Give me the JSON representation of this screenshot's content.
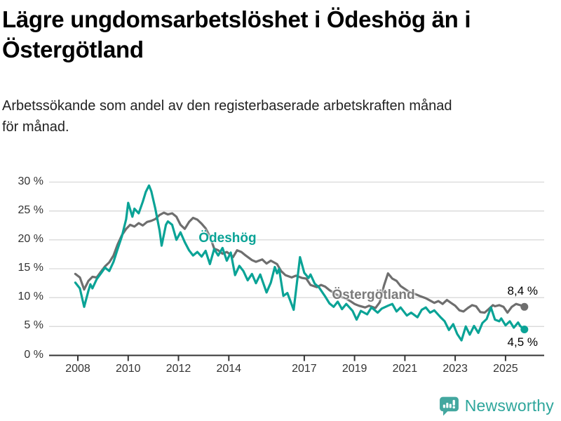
{
  "header": {
    "title_line1": "Lägre ungdomsarbetslöshet i Ödeshög än i",
    "title_line2": "Östergötland",
    "subtitle_line1": "Arbetssökande som andel av den registerbaserade arbetskraften månad",
    "subtitle_line2": "för månad."
  },
  "chart_data": {
    "type": "line",
    "unit": "%",
    "grid": true,
    "style": {
      "grid_color": "#d9d9d9",
      "axis_color": "#333333",
      "tick_label_color": "#333333"
    },
    "x_axis": {
      "range": [
        2007.9,
        2026.5
      ],
      "ticks": [
        2008,
        2010,
        2012,
        2014,
        2017,
        2019,
        2021,
        2023,
        2025
      ]
    },
    "y_axis": {
      "range": [
        0,
        30
      ],
      "ticks": [
        {
          "value": 30,
          "label": "30 %"
        },
        {
          "value": 25,
          "label": "25 %"
        },
        {
          "value": 20,
          "label": "20 %"
        },
        {
          "value": 15,
          "label": "15 %"
        },
        {
          "value": 10,
          "label": "10 %"
        },
        {
          "value": 5,
          "label": "5 %"
        },
        {
          "value": 0,
          "label": "0 %"
        }
      ]
    },
    "series": [
      {
        "name": "Ödeshög",
        "color": "#0aa396",
        "label_color": "#0aa396",
        "end_value": 4.5,
        "end_label": "4,5 %",
        "label_anchor": {
          "year": 2013.95,
          "pct": 20.2
        },
        "end_label_anchor": {
          "year": 2025.68,
          "pct": 2.2
        },
        "points": [
          [
            2007.9,
            12.6
          ],
          [
            2008.08,
            11.6
          ],
          [
            2008.25,
            8.4
          ],
          [
            2008.42,
            11.2
          ],
          [
            2008.5,
            12.3
          ],
          [
            2008.58,
            11.6
          ],
          [
            2008.75,
            13.2
          ],
          [
            2008.92,
            14.2
          ],
          [
            2009.08,
            15.2
          ],
          [
            2009.25,
            14.6
          ],
          [
            2009.42,
            16.2
          ],
          [
            2009.58,
            18.4
          ],
          [
            2009.75,
            20.6
          ],
          [
            2009.92,
            23.6
          ],
          [
            2010.0,
            26.4
          ],
          [
            2010.17,
            24.0
          ],
          [
            2010.25,
            25.4
          ],
          [
            2010.42,
            24.6
          ],
          [
            2010.58,
            26.6
          ],
          [
            2010.7,
            28.3
          ],
          [
            2010.83,
            29.4
          ],
          [
            2010.92,
            28.4
          ],
          [
            2011.08,
            25.4
          ],
          [
            2011.25,
            21.6
          ],
          [
            2011.33,
            19.0
          ],
          [
            2011.5,
            22.6
          ],
          [
            2011.58,
            23.2
          ],
          [
            2011.75,
            22.6
          ],
          [
            2011.92,
            20.0
          ],
          [
            2012.08,
            21.3
          ],
          [
            2012.25,
            19.6
          ],
          [
            2012.42,
            18.2
          ],
          [
            2012.58,
            17.3
          ],
          [
            2012.75,
            17.9
          ],
          [
            2012.92,
            17.1
          ],
          [
            2013.08,
            18.1
          ],
          [
            2013.25,
            15.8
          ],
          [
            2013.42,
            18.4
          ],
          [
            2013.58,
            17.3
          ],
          [
            2013.75,
            18.6
          ],
          [
            2013.92,
            16.4
          ],
          [
            2014.08,
            17.8
          ],
          [
            2014.25,
            13.9
          ],
          [
            2014.42,
            15.5
          ],
          [
            2014.58,
            14.6
          ],
          [
            2014.75,
            13.0
          ],
          [
            2014.92,
            14.1
          ],
          [
            2015.08,
            12.5
          ],
          [
            2015.25,
            14.0
          ],
          [
            2015.5,
            10.9
          ],
          [
            2015.67,
            12.6
          ],
          [
            2015.83,
            15.3
          ],
          [
            2015.92,
            14.2
          ],
          [
            2016.0,
            15.0
          ],
          [
            2016.17,
            10.3
          ],
          [
            2016.33,
            10.8
          ],
          [
            2016.58,
            7.9
          ],
          [
            2016.83,
            17.0
          ],
          [
            2017.0,
            14.3
          ],
          [
            2017.17,
            13.4
          ],
          [
            2017.25,
            14.0
          ],
          [
            2017.42,
            12.4
          ],
          [
            2017.58,
            11.8
          ],
          [
            2017.83,
            10.2
          ],
          [
            2018.0,
            9.0
          ],
          [
            2018.17,
            8.4
          ],
          [
            2018.33,
            9.3
          ],
          [
            2018.5,
            8.0
          ],
          [
            2018.67,
            8.9
          ],
          [
            2018.92,
            7.7
          ],
          [
            2019.08,
            6.2
          ],
          [
            2019.25,
            7.7
          ],
          [
            2019.5,
            7.1
          ],
          [
            2019.67,
            8.3
          ],
          [
            2019.92,
            7.4
          ],
          [
            2020.08,
            8.1
          ],
          [
            2020.33,
            8.6
          ],
          [
            2020.5,
            8.9
          ],
          [
            2020.67,
            7.6
          ],
          [
            2020.83,
            8.3
          ],
          [
            2021.08,
            6.9
          ],
          [
            2021.25,
            7.4
          ],
          [
            2021.5,
            6.6
          ],
          [
            2021.67,
            7.9
          ],
          [
            2021.83,
            8.3
          ],
          [
            2022.0,
            7.4
          ],
          [
            2022.17,
            7.8
          ],
          [
            2022.42,
            6.6
          ],
          [
            2022.58,
            5.9
          ],
          [
            2022.75,
            4.4
          ],
          [
            2022.92,
            5.4
          ],
          [
            2023.08,
            3.7
          ],
          [
            2023.25,
            2.6
          ],
          [
            2023.42,
            5.0
          ],
          [
            2023.58,
            3.6
          ],
          [
            2023.75,
            5.1
          ],
          [
            2023.92,
            3.9
          ],
          [
            2024.08,
            5.6
          ],
          [
            2024.25,
            6.3
          ],
          [
            2024.42,
            8.3
          ],
          [
            2024.58,
            6.2
          ],
          [
            2024.75,
            5.9
          ],
          [
            2024.83,
            6.4
          ],
          [
            2025.0,
            5.2
          ],
          [
            2025.17,
            5.9
          ],
          [
            2025.33,
            4.8
          ],
          [
            2025.5,
            5.7
          ],
          [
            2025.58,
            5.1
          ],
          [
            2025.75,
            4.5
          ]
        ]
      },
      {
        "name": "Östergötland",
        "color": "#6e6e6e",
        "label_color": "#7a7a7a",
        "end_value": 8.4,
        "end_label": "8,4 %",
        "label_anchor": {
          "year": 2019.75,
          "pct": 10.35
        },
        "end_label_anchor": {
          "year": 2025.68,
          "pct": 11.1
        },
        "points": [
          [
            2007.9,
            14.1
          ],
          [
            2008.08,
            13.5
          ],
          [
            2008.25,
            11.4
          ],
          [
            2008.42,
            12.9
          ],
          [
            2008.58,
            13.6
          ],
          [
            2008.75,
            13.5
          ],
          [
            2008.92,
            14.5
          ],
          [
            2009.08,
            15.4
          ],
          [
            2009.25,
            16.1
          ],
          [
            2009.42,
            17.3
          ],
          [
            2009.58,
            19.2
          ],
          [
            2009.75,
            20.8
          ],
          [
            2009.92,
            21.9
          ],
          [
            2010.08,
            22.6
          ],
          [
            2010.25,
            22.3
          ],
          [
            2010.42,
            22.9
          ],
          [
            2010.58,
            22.5
          ],
          [
            2010.75,
            23.1
          ],
          [
            2010.92,
            23.3
          ],
          [
            2011.08,
            23.6
          ],
          [
            2011.25,
            24.3
          ],
          [
            2011.42,
            24.7
          ],
          [
            2011.58,
            24.4
          ],
          [
            2011.75,
            24.6
          ],
          [
            2011.92,
            24.0
          ],
          [
            2012.08,
            22.6
          ],
          [
            2012.25,
            21.9
          ],
          [
            2012.42,
            23.1
          ],
          [
            2012.58,
            23.8
          ],
          [
            2012.75,
            23.5
          ],
          [
            2012.92,
            22.8
          ],
          [
            2013.08,
            22.0
          ],
          [
            2013.25,
            20.6
          ],
          [
            2013.42,
            18.5
          ],
          [
            2013.58,
            18.2
          ],
          [
            2013.75,
            17.6
          ],
          [
            2013.92,
            17.9
          ],
          [
            2014.08,
            17.4
          ],
          [
            2014.17,
            17.0
          ],
          [
            2014.33,
            18.2
          ],
          [
            2014.5,
            17.9
          ],
          [
            2014.67,
            17.3
          ],
          [
            2014.92,
            16.5
          ],
          [
            2015.08,
            16.2
          ],
          [
            2015.33,
            16.6
          ],
          [
            2015.5,
            15.9
          ],
          [
            2015.67,
            16.4
          ],
          [
            2015.92,
            15.8
          ],
          [
            2016.08,
            14.6
          ],
          [
            2016.25,
            13.9
          ],
          [
            2016.5,
            13.5
          ],
          [
            2016.67,
            13.8
          ],
          [
            2016.92,
            13.4
          ],
          [
            2017.08,
            13.3
          ],
          [
            2017.25,
            12.2
          ],
          [
            2017.5,
            11.8
          ],
          [
            2017.67,
            12.2
          ],
          [
            2017.83,
            11.9
          ],
          [
            2018.0,
            11.3
          ],
          [
            2018.25,
            10.6
          ],
          [
            2018.42,
            10.2
          ],
          [
            2018.67,
            9.8
          ],
          [
            2018.83,
            9.4
          ],
          [
            2019.0,
            8.9
          ],
          [
            2019.17,
            8.6
          ],
          [
            2019.42,
            8.3
          ],
          [
            2019.58,
            8.6
          ],
          [
            2019.83,
            8.2
          ],
          [
            2020.0,
            9.2
          ],
          [
            2020.17,
            12.1
          ],
          [
            2020.33,
            14.2
          ],
          [
            2020.5,
            13.3
          ],
          [
            2020.67,
            12.9
          ],
          [
            2020.83,
            12.0
          ],
          [
            2021.0,
            11.5
          ],
          [
            2021.17,
            11.0
          ],
          [
            2021.42,
            10.6
          ],
          [
            2021.58,
            10.3
          ],
          [
            2021.83,
            9.9
          ],
          [
            2022.0,
            9.5
          ],
          [
            2022.17,
            9.1
          ],
          [
            2022.33,
            9.4
          ],
          [
            2022.5,
            8.9
          ],
          [
            2022.67,
            9.6
          ],
          [
            2022.83,
            9.1
          ],
          [
            2023.0,
            8.6
          ],
          [
            2023.17,
            7.8
          ],
          [
            2023.33,
            7.6
          ],
          [
            2023.5,
            8.2
          ],
          [
            2023.67,
            8.7
          ],
          [
            2023.83,
            8.5
          ],
          [
            2024.0,
            7.5
          ],
          [
            2024.17,
            7.4
          ],
          [
            2024.33,
            8.0
          ],
          [
            2024.5,
            8.7
          ],
          [
            2024.58,
            8.5
          ],
          [
            2024.75,
            8.7
          ],
          [
            2024.92,
            8.4
          ],
          [
            2025.08,
            7.4
          ],
          [
            2025.25,
            8.4
          ],
          [
            2025.42,
            8.9
          ],
          [
            2025.58,
            8.7
          ],
          [
            2025.75,
            8.4
          ]
        ]
      }
    ]
  },
  "footer": {
    "brand": "Newsworthy",
    "brand_color": "#2ea69c",
    "logo_color": "#43a79f"
  }
}
